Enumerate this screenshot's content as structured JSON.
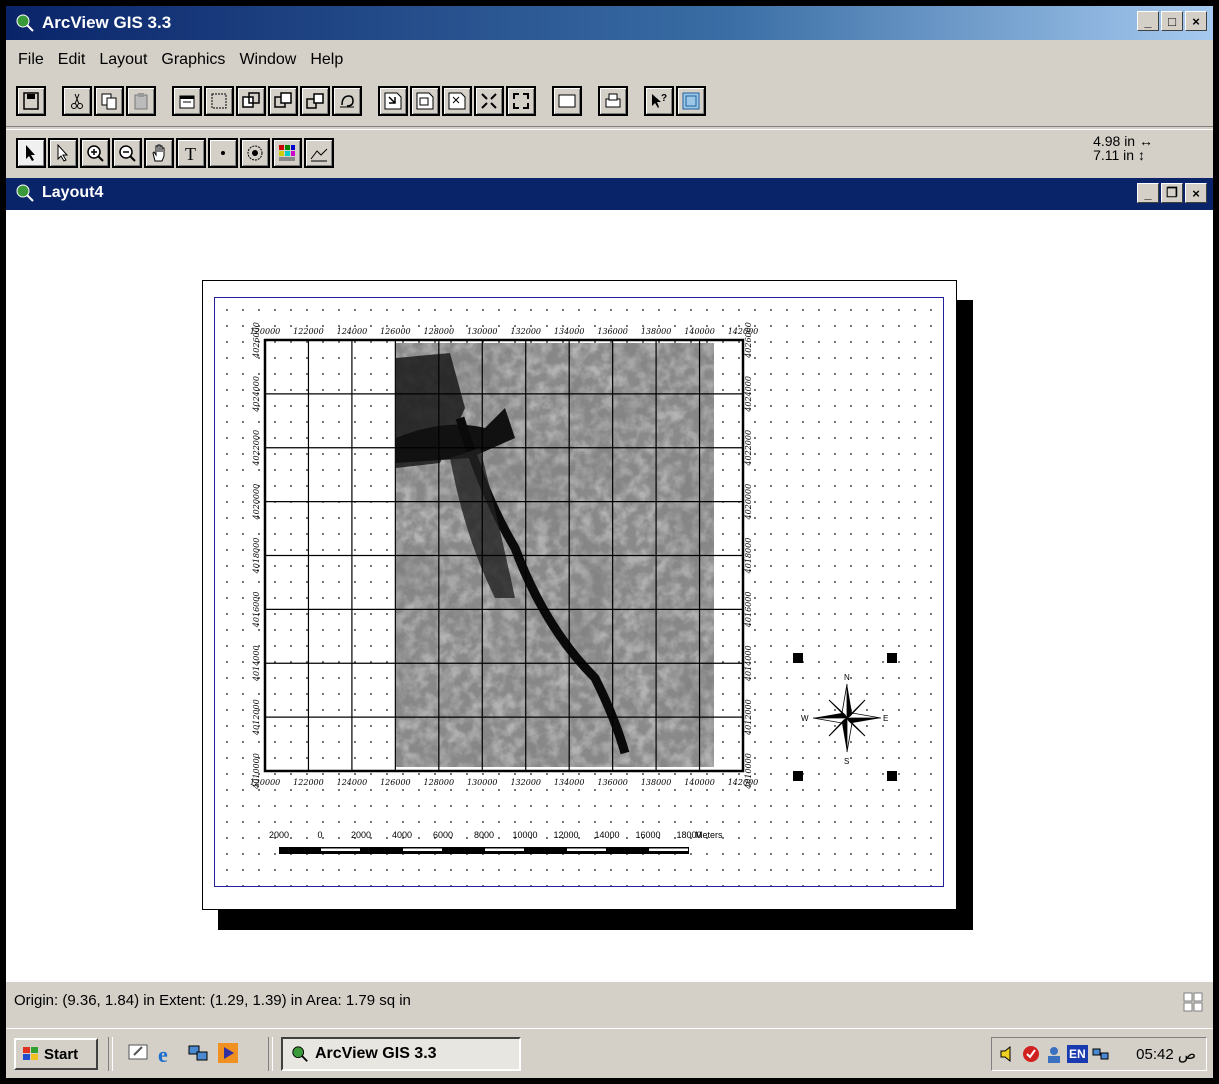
{
  "window": {
    "title": "ArcView GIS 3.3"
  },
  "menu": [
    "File",
    "Edit",
    "Layout",
    "Graphics",
    "Window",
    "Help"
  ],
  "toolbar_buttons": [
    "save",
    "cut",
    "copy",
    "paste",
    "properties",
    "new-frame",
    "group",
    "ungroup",
    "bring-to-front",
    "send-to-back",
    "zoom-in",
    "zoom-out",
    "zoom-to-page",
    "zoom-to-actual",
    "zoom-to-selected",
    "frame",
    "print",
    "help",
    "layout-template"
  ],
  "tool_buttons": [
    "pointer",
    "vertex-edit",
    "zoom-in",
    "zoom-out",
    "pan",
    "text",
    "point",
    "north-arrow",
    "fill-palette",
    "draw"
  ],
  "coords": {
    "x_readout": "4.98 in",
    "y_readout": "7.11 in",
    "x_arrow": "↔",
    "y_arrow": "↕"
  },
  "child_window": {
    "title": "Layout4"
  },
  "map": {
    "x_ticks": [
      "120000",
      "122000",
      "124000",
      "126000",
      "128000",
      "130000",
      "132000",
      "134000",
      "136000",
      "138000",
      "140000",
      "142000"
    ],
    "y_ticks": [
      "4010000",
      "4012000",
      "4014000",
      "4016000",
      "4018000",
      "4020000",
      "4022000",
      "4024000",
      "4026000"
    ],
    "north_arrow": {
      "n": "N",
      "s": "S",
      "e": "E",
      "w": "W"
    },
    "scalebar": {
      "labels": [
        "2000",
        "0",
        "2000",
        "4000",
        "6000",
        "8000",
        "10000",
        "12000",
        "14000",
        "16000",
        "18000"
      ],
      "unit": "Meters"
    }
  },
  "status": {
    "text": "Origin: (9.36, 1.84) in  Extent: (1.29, 1.39) in  Area: 1.79 sq in"
  },
  "taskbar": {
    "start_label": "Start",
    "task_label": "ArcView GIS 3.3",
    "lang": "EN",
    "clock": "05:42 ص"
  }
}
